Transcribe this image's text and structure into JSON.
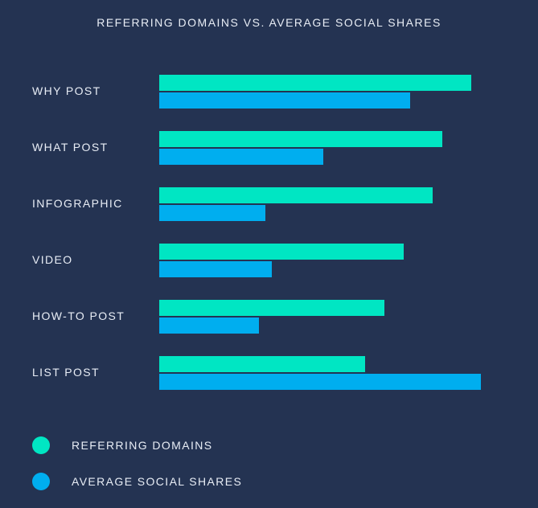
{
  "chart_data": {
    "type": "bar",
    "orientation": "horizontal",
    "title": "REFERRING DOMAINS VS. AVERAGE SOCIAL SHARES",
    "xlabel": "",
    "ylabel": "",
    "categories": [
      "WHY POST",
      "WHAT POST",
      "INFOGRAPHIC",
      "VIDEO",
      "HOW-TO POST",
      "LIST POST"
    ],
    "series": [
      {
        "name": "REFERRING DOMAINS",
        "color": "#00e6c3",
        "values": [
          97,
          88,
          85,
          76,
          70,
          64
        ]
      },
      {
        "name": "AVERAGE SOCIAL SHARES",
        "color": "#00aeef",
        "values": [
          78,
          51,
          33,
          35,
          31,
          100
        ]
      }
    ],
    "xlim": [
      0,
      100
    ],
    "grid": false,
    "legend_position": "bottom-left"
  },
  "colors": {
    "background": "#243352",
    "text": "#e8edf5"
  }
}
